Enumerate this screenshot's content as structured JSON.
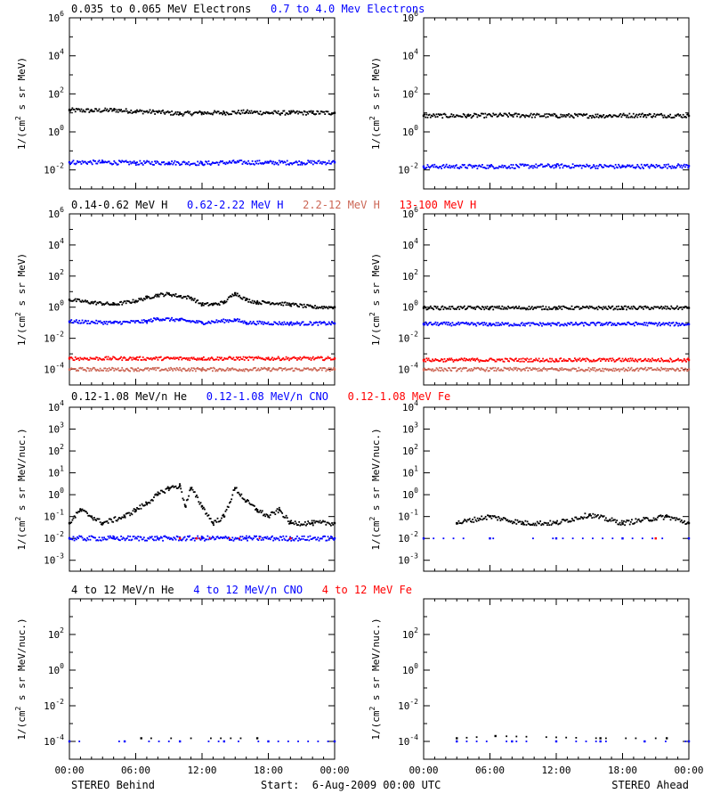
{
  "colors": {
    "black": "#000000",
    "blue": "#0000ff",
    "salmon": "#cc6655",
    "red": "#ff0000"
  },
  "footer": {
    "left": "STEREO Behind",
    "center": "Start:  6-Aug-2009 00:00 UTC",
    "right": "STEREO Ahead"
  },
  "chart_data": [
    {
      "type": "scatter",
      "spacecraft": "STEREO Behind",
      "row": 0,
      "col": 0,
      "y_scale": "log",
      "ylim_exp": [
        -3,
        6
      ],
      "ytick_labels": [
        "10^-2",
        "10^0",
        "10^2",
        "10^4",
        "10^6"
      ],
      "ylabel": "1/(cm^2 s sr MeV)",
      "xlim_hours": [
        0,
        24
      ],
      "series": [
        {
          "name": "0.035 to 0.065 MeV Electrons",
          "color": "#000000",
          "points": [
            [
              0,
              14
            ],
            [
              2,
              13
            ],
            [
              4,
              14
            ],
            [
              6,
              12
            ],
            [
              8,
              11
            ],
            [
              10,
              9
            ],
            [
              12,
              10
            ],
            [
              14,
              10
            ],
            [
              16,
              11
            ],
            [
              18,
              10
            ],
            [
              20,
              10
            ],
            [
              22,
              10
            ],
            [
              24,
              10
            ]
          ]
        },
        {
          "name": "0.7 to 4.0 Mev Electrons",
          "color": "#0000ff",
          "points": [
            [
              0,
              0.025
            ],
            [
              3,
              0.025
            ],
            [
              6,
              0.023
            ],
            [
              9,
              0.024
            ],
            [
              12,
              0.022
            ],
            [
              15,
              0.025
            ],
            [
              18,
              0.024
            ],
            [
              21,
              0.024
            ],
            [
              24,
              0.025
            ]
          ]
        }
      ]
    },
    {
      "type": "scatter",
      "spacecraft": "STEREO Ahead",
      "row": 0,
      "col": 1,
      "y_scale": "log",
      "ylim_exp": [
        -3,
        6
      ],
      "ytick_labels": [
        "10^-2",
        "10^0",
        "10^2",
        "10^4",
        "10^6"
      ],
      "ylabel": "1/(cm^2 s sr MeV)",
      "xlim_hours": [
        0,
        24
      ],
      "series": [
        {
          "color": "#000000",
          "points": [
            [
              0,
              7
            ],
            [
              4,
              7
            ],
            [
              8,
              7.5
            ],
            [
              12,
              7
            ],
            [
              16,
              7
            ],
            [
              20,
              7.5
            ],
            [
              24,
              7
            ]
          ]
        },
        {
          "color": "#0000ff",
          "points": [
            [
              0,
              0.015
            ],
            [
              6,
              0.015
            ],
            [
              12,
              0.016
            ],
            [
              18,
              0.015
            ],
            [
              24,
              0.016
            ]
          ]
        }
      ]
    },
    {
      "type": "scatter",
      "spacecraft": "STEREO Behind",
      "row": 1,
      "col": 0,
      "y_scale": "log",
      "ylim_exp": [
        -5,
        6
      ],
      "ytick_labels": [
        "10^-4",
        "10^-2",
        "10^0",
        "10^2",
        "10^4",
        "10^6"
      ],
      "ylabel": "1/(cm^2 s sr MeV)",
      "xlim_hours": [
        0,
        24
      ],
      "series": [
        {
          "name": "0.14-0.62 MeV H",
          "color": "#000000",
          "points": [
            [
              0,
              3
            ],
            [
              2,
              2
            ],
            [
              4,
              1.5
            ],
            [
              6,
              2.5
            ],
            [
              7,
              4
            ],
            [
              8,
              6
            ],
            [
              9,
              7
            ],
            [
              10,
              5
            ],
            [
              11,
              4
            ],
            [
              12,
              1.5
            ],
            [
              13,
              1.5
            ],
            [
              14,
              2
            ],
            [
              15,
              8
            ],
            [
              16,
              3
            ],
            [
              17,
              2
            ],
            [
              18,
              2
            ],
            [
              20,
              1.5
            ],
            [
              22,
              1
            ],
            [
              24,
              1
            ]
          ]
        },
        {
          "name": "0.62-2.22 MeV H",
          "color": "#0000ff",
          "points": [
            [
              0,
              0.12
            ],
            [
              4,
              0.1
            ],
            [
              7,
              0.12
            ],
            [
              8,
              0.18
            ],
            [
              10,
              0.15
            ],
            [
              12,
              0.1
            ],
            [
              15,
              0.15
            ],
            [
              16,
              0.1
            ],
            [
              20,
              0.09
            ],
            [
              24,
              0.09
            ]
          ]
        },
        {
          "name": "2.2-12 MeV H",
          "color": "#cc6655",
          "points": [
            [
              0,
              0.0001
            ],
            [
              6,
              0.0001
            ],
            [
              12,
              0.0001
            ],
            [
              18,
              0.0001
            ],
            [
              24,
              0.0001
            ]
          ]
        },
        {
          "name": "13-100 MeV H",
          "color": "#ff0000",
          "points": [
            [
              0,
              0.0005
            ],
            [
              6,
              0.0005
            ],
            [
              12,
              0.0005
            ],
            [
              18,
              0.0005
            ],
            [
              24,
              0.0005
            ]
          ]
        }
      ]
    },
    {
      "type": "scatter",
      "spacecraft": "STEREO Ahead",
      "row": 1,
      "col": 1,
      "y_scale": "log",
      "ylim_exp": [
        -5,
        6
      ],
      "ytick_labels": [
        "10^-4",
        "10^-2",
        "10^0",
        "10^2",
        "10^4",
        "10^6"
      ],
      "ylabel": "1/(cm^2 s sr MeV)",
      "xlim_hours": [
        0,
        24
      ],
      "series": [
        {
          "color": "#000000",
          "points": [
            [
              0,
              0.9
            ],
            [
              6,
              0.9
            ],
            [
              12,
              0.9
            ],
            [
              18,
              0.9
            ],
            [
              24,
              0.9
            ]
          ]
        },
        {
          "color": "#0000ff",
          "points": [
            [
              0,
              0.085
            ],
            [
              6,
              0.08
            ],
            [
              12,
              0.08
            ],
            [
              18,
              0.085
            ],
            [
              24,
              0.08
            ]
          ]
        },
        {
          "color": "#cc6655",
          "points": [
            [
              0,
              0.0001
            ],
            [
              12,
              0.0001
            ],
            [
              24,
              0.0001
            ]
          ]
        },
        {
          "color": "#ff0000",
          "points": [
            [
              0,
              0.0004
            ],
            [
              12,
              0.0004
            ],
            [
              24,
              0.0004
            ]
          ]
        }
      ]
    },
    {
      "type": "scatter",
      "spacecraft": "STEREO Behind",
      "row": 2,
      "col": 0,
      "y_scale": "log",
      "ylim_exp": [
        -3.5,
        4
      ],
      "ytick_labels": [
        "10^-3",
        "10^-2",
        "10^-1",
        "10^0",
        "10^1",
        "10^2",
        "10^3",
        "10^4"
      ],
      "ylabel": "1/(cm^2 s sr MeV/nuc.)",
      "xlim_hours": [
        0,
        24
      ],
      "series": [
        {
          "name": "0.12-1.08 MeV/n He",
          "color": "#000000",
          "points": [
            [
              0,
              0.05
            ],
            [
              1,
              0.2
            ],
            [
              2,
              0.1
            ],
            [
              3,
              0.05
            ],
            [
              5,
              0.1
            ],
            [
              6,
              0.2
            ],
            [
              7,
              0.4
            ],
            [
              8,
              1
            ],
            [
              9,
              2
            ],
            [
              10,
              2.5
            ],
            [
              10.5,
              0.3
            ],
            [
              11,
              2
            ],
            [
              12,
              0.3
            ],
            [
              13,
              0.05
            ],
            [
              14,
              0.1
            ],
            [
              15,
              2
            ],
            [
              16,
              0.5
            ],
            [
              17,
              0.2
            ],
            [
              18,
              0.1
            ],
            [
              19,
              0.2
            ],
            [
              20,
              0.05
            ],
            [
              22,
              0.05
            ],
            [
              24,
              0.05
            ]
          ]
        },
        {
          "name": "0.12-1.08 MeV/n CNO",
          "color": "#0000ff",
          "points": [
            [
              0,
              0.01
            ],
            [
              4,
              0.01
            ],
            [
              8,
              0.01
            ],
            [
              12,
              0.01
            ],
            [
              16,
              0.01
            ],
            [
              20,
              0.01
            ],
            [
              24,
              0.01
            ]
          ]
        },
        {
          "name": "0.12-1.08 MeV Fe",
          "color": "#ff0000",
          "points": [
            [
              10,
              0.01
            ],
            [
              11.5,
              0.01
            ],
            [
              20,
              0.01
            ]
          ]
        }
      ]
    },
    {
      "type": "scatter",
      "spacecraft": "STEREO Ahead",
      "row": 2,
      "col": 1,
      "y_scale": "log",
      "ylim_exp": [
        -3.5,
        4
      ],
      "ytick_labels": [
        "10^-3",
        "10^-2",
        "10^-1",
        "10^0",
        "10^1",
        "10^2",
        "10^3",
        "10^4"
      ],
      "ylabel": "1/(cm^2 s sr MeV/nuc.)",
      "xlim_hours": [
        0,
        24
      ],
      "series": [
        {
          "color": "#000000",
          "points": [
            [
              3,
              0.05
            ],
            [
              6,
              0.1
            ],
            [
              9,
              0.05
            ],
            [
              12,
              0.05
            ],
            [
              15,
              0.12
            ],
            [
              18,
              0.05
            ],
            [
              22,
              0.1
            ],
            [
              24,
              0.05
            ]
          ]
        },
        {
          "color": "#0000ff",
          "points": [
            [
              0,
              0.01
            ],
            [
              6,
              0.01
            ],
            [
              12,
              0.01
            ],
            [
              18,
              0.01
            ],
            [
              24,
              0.01
            ]
          ]
        },
        {
          "color": "#ff0000",
          "points": [
            [
              21,
              0.01
            ]
          ]
        }
      ]
    },
    {
      "type": "scatter",
      "spacecraft": "STEREO Behind",
      "row": 3,
      "col": 0,
      "y_scale": "log",
      "ylim_exp": [
        -5,
        4
      ],
      "ytick_labels": [
        "10^-4",
        "10^-2",
        "10^0",
        "10^2"
      ],
      "ylabel": "1/(cm^2 s sr MeV/nuc.)",
      "xlim_hours": [
        0,
        24
      ],
      "series": [
        {
          "name": "4 to 12 MeV/n He",
          "color": "#000000",
          "points": [
            [
              6.5,
              0.00015
            ],
            [
              17,
              0.00015
            ]
          ]
        },
        {
          "name": "4 to 12 MeV/n CNO",
          "color": "#0000ff",
          "points": [
            [
              0,
              0.0001
            ],
            [
              5,
              0.0001
            ],
            [
              10,
              0.0001
            ],
            [
              14,
              0.0001
            ],
            [
              18,
              0.0001
            ],
            [
              24,
              0.0001
            ]
          ]
        },
        {
          "name": "4 to 12 MeV Fe",
          "color": "#ff0000",
          "points": []
        }
      ]
    },
    {
      "type": "scatter",
      "spacecraft": "STEREO Ahead",
      "row": 3,
      "col": 1,
      "y_scale": "log",
      "ylim_exp": [
        -5,
        4
      ],
      "ytick_labels": [
        "10^-4",
        "10^-2",
        "10^0",
        "10^2"
      ],
      "ylabel": "1/(cm^2 s sr MeV/nuc.)",
      "xlim_hours": [
        0,
        24
      ],
      "series": [
        {
          "color": "#000000",
          "points": [
            [
              3,
              0.00015
            ],
            [
              6.5,
              0.0002
            ],
            [
              16,
              0.00015
            ],
            [
              22,
              0.00015
            ]
          ]
        },
        {
          "color": "#0000ff",
          "points": [
            [
              3,
              0.0001
            ],
            [
              8,
              0.0001
            ],
            [
              12,
              0.0001
            ],
            [
              16,
              0.0001
            ],
            [
              20,
              0.0001
            ],
            [
              24,
              0.0001
            ]
          ]
        }
      ]
    }
  ],
  "x_axis": {
    "tick_labels": [
      "00:00",
      "06:00",
      "12:00",
      "18:00",
      "00:00"
    ],
    "tick_hours": [
      0,
      6,
      12,
      18,
      24
    ]
  }
}
